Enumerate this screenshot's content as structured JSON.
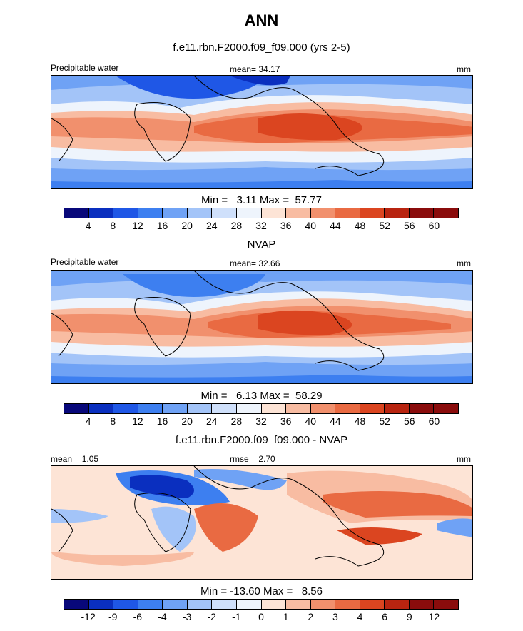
{
  "title": "ANN",
  "panels": [
    {
      "id": "model",
      "title": "f.e11.rbn.F2000.f09_f09.000 (yrs 2-5)",
      "left_label": "Precipitable water",
      "center_label": "mean=  34.17",
      "right_label": "mm",
      "minmax": "Min =   3.11 Max =  57.77",
      "legend": [
        "4",
        "8",
        "12",
        "16",
        "20",
        "24",
        "28",
        "32",
        "36",
        "40",
        "44",
        "48",
        "52",
        "56",
        "60"
      ],
      "palette": [
        "#08087a",
        "#0a2fbf",
        "#1f57e6",
        "#3d7ff0",
        "#6fa2f5",
        "#a3c4f8",
        "#cfe0fb",
        "#eef4fc",
        "#fde4d6",
        "#f8bca2",
        "#f1906d",
        "#e96a42",
        "#db4520",
        "#b82410",
        "#8a0c0c"
      ]
    },
    {
      "id": "obs",
      "title": "NVAP",
      "left_label": "Precipitable water",
      "center_label": "mean=  32.66",
      "right_label": "mm",
      "minmax": "Min =   6.13 Max =  58.29",
      "legend": [
        "4",
        "8",
        "12",
        "16",
        "20",
        "24",
        "28",
        "32",
        "36",
        "40",
        "44",
        "48",
        "52",
        "56",
        "60"
      ],
      "palette": [
        "#08087a",
        "#0a2fbf",
        "#1f57e6",
        "#3d7ff0",
        "#6fa2f5",
        "#a3c4f8",
        "#cfe0fb",
        "#eef4fc",
        "#fde4d6",
        "#f8bca2",
        "#f1906d",
        "#e96a42",
        "#db4520",
        "#b82410",
        "#8a0c0c"
      ]
    },
    {
      "id": "diff",
      "title": "f.e11.rbn.F2000.f09_f09.000 - NVAP",
      "left_label": "mean =   1.05",
      "center_label": "rmse =   2.70",
      "right_label": "mm",
      "minmax": "Min = -13.60 Max =   8.56",
      "legend": [
        "-12",
        "-9",
        "-6",
        "-4",
        "-3",
        "-2",
        "-1",
        "0",
        "1",
        "2",
        "3",
        "4",
        "6",
        "9",
        "12"
      ],
      "palette": [
        "#08087a",
        "#0a2fbf",
        "#1f57e6",
        "#3d7ff0",
        "#6fa2f5",
        "#a3c4f8",
        "#cfe0fb",
        "#eef4fc",
        "#fde4d6",
        "#f8bca2",
        "#f1906d",
        "#e96a42",
        "#db4520",
        "#b82410",
        "#8a0c0c"
      ]
    }
  ]
}
